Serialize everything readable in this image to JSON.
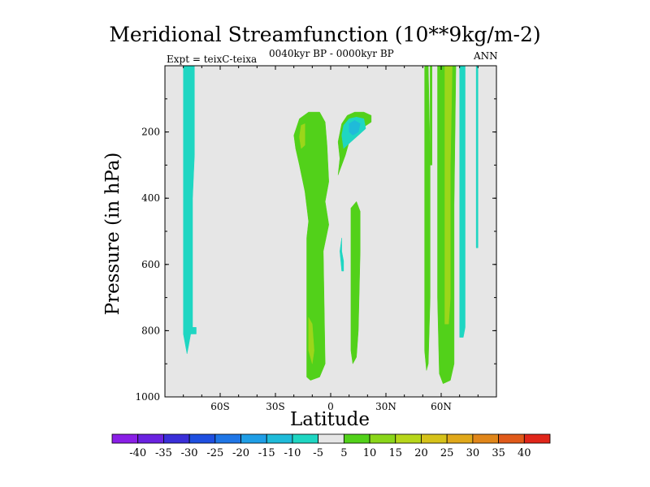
{
  "chart_data": {
    "type": "heatmap",
    "title": "Meridional Streamfunction (10**9kg/m-2)",
    "subtitle_left": "Expt = teixC-teixa",
    "subtitle_center": "0040kyr BP - 0000kyr BP",
    "subtitle_right": "ANN",
    "xlabel": "Latitude",
    "ylabel": "Pressure (in hPa)",
    "xlim": [
      -90,
      90
    ],
    "ylim": [
      1000,
      0
    ],
    "x_ticks": [
      {
        "value": -60,
        "label": "60S"
      },
      {
        "value": -30,
        "label": "30S"
      },
      {
        "value": 0,
        "label": "0"
      },
      {
        "value": 30,
        "label": "30N"
      },
      {
        "value": 60,
        "label": "60N"
      }
    ],
    "y_ticks": [
      {
        "value": 200,
        "label": "200"
      },
      {
        "value": 400,
        "label": "400"
      },
      {
        "value": 600,
        "label": "600"
      },
      {
        "value": 800,
        "label": "800"
      },
      {
        "value": 1000,
        "label": "1000"
      }
    ],
    "background_color": "#e6e6e6",
    "colorbar": {
      "levels": [
        "-40",
        "-35",
        "-30",
        "-25",
        "-20",
        "-15",
        "-10",
        "-5",
        "5",
        "10",
        "15",
        "20",
        "25",
        "30",
        "35",
        "40"
      ],
      "colors": [
        "#8a1fe6",
        "#6a22e0",
        "#3a2fd8",
        "#1f4fe0",
        "#1f76e6",
        "#1f9ee6",
        "#1fbbd9",
        "#1fd6c2",
        "#e6e6e6",
        "#52d11a",
        "#8ad61a",
        "#b7d61a",
        "#d6c21a",
        "#e0a81a",
        "#e0861a",
        "#e05a1a",
        "#e0261a"
      ]
    },
    "regions": [
      {
        "value_class": "-5",
        "color": "#1fd6c2",
        "points": [
          [
            -80,
            0
          ],
          [
            -74,
            0
          ],
          [
            -74,
            270
          ],
          [
            -75,
            400
          ],
          [
            -75,
            790
          ],
          [
            -73,
            790
          ],
          [
            -73,
            810
          ],
          [
            -76,
            810
          ],
          [
            -77,
            840
          ],
          [
            -78,
            870
          ],
          [
            -80,
            810
          ],
          [
            -80,
            400
          ]
        ]
      },
      {
        "value_class": "5",
        "color": "#52d11a",
        "points": [
          [
            -20,
            210
          ],
          [
            -17,
            160
          ],
          [
            -12,
            140
          ],
          [
            -6,
            140
          ],
          [
            -3,
            170
          ],
          [
            -2,
            240
          ],
          [
            -1,
            350
          ],
          [
            -3,
            410
          ],
          [
            -1,
            480
          ],
          [
            -4,
            560
          ],
          [
            -3,
            900
          ],
          [
            -6,
            940
          ],
          [
            -11,
            950
          ],
          [
            -13,
            940
          ],
          [
            -13,
            860
          ],
          [
            -13,
            520
          ],
          [
            -12,
            470
          ],
          [
            -14,
            380
          ],
          [
            -17,
            300
          ],
          [
            -19,
            250
          ]
        ]
      },
      {
        "value_class": "10",
        "color": "#9bd61a",
        "points": [
          [
            -16,
            180
          ],
          [
            -14,
            175
          ],
          [
            -14,
            240
          ],
          [
            -16,
            250
          ],
          [
            -17,
            215
          ]
        ]
      },
      {
        "value_class": "10",
        "color": "#9bd61a",
        "points": [
          [
            -12,
            760
          ],
          [
            -10,
            780
          ],
          [
            -9,
            860
          ],
          [
            -10,
            900
          ],
          [
            -12,
            860
          ]
        ]
      },
      {
        "value_class": "5",
        "color": "#52d11a",
        "points": [
          [
            4,
            330
          ],
          [
            8,
            270
          ],
          [
            10,
            230
          ],
          [
            14,
            210
          ],
          [
            18,
            185
          ],
          [
            22,
            170
          ],
          [
            22,
            150
          ],
          [
            18,
            140
          ],
          [
            13,
            140
          ],
          [
            9,
            150
          ],
          [
            6,
            175
          ],
          [
            4,
            230
          ],
          [
            5,
            280
          ]
        ]
      },
      {
        "value_class": "-5",
        "color": "#1fd6c2",
        "points": [
          [
            7,
            180
          ],
          [
            10,
            160
          ],
          [
            14,
            155
          ],
          [
            18,
            160
          ],
          [
            19,
            190
          ],
          [
            15,
            210
          ],
          [
            11,
            230
          ],
          [
            7,
            250
          ],
          [
            6,
            210
          ]
        ]
      },
      {
        "value_class": "-10",
        "color": "#1fbbd9",
        "points": [
          [
            10,
            175
          ],
          [
            13,
            165
          ],
          [
            16,
            175
          ],
          [
            15,
            200
          ],
          [
            12,
            210
          ],
          [
            10,
            200
          ]
        ]
      },
      {
        "value_class": "5",
        "color": "#52d11a",
        "points": [
          [
            11,
            430
          ],
          [
            14,
            410
          ],
          [
            16,
            440
          ],
          [
            16,
            560
          ],
          [
            15,
            800
          ],
          [
            14,
            880
          ],
          [
            12,
            900
          ],
          [
            11,
            860
          ],
          [
            11,
            600
          ]
        ]
      },
      {
        "value_class": "5",
        "color": "#52d11a",
        "points": [
          [
            51,
            0
          ],
          [
            53,
            0
          ],
          [
            54,
            280
          ],
          [
            54,
            700
          ],
          [
            53,
            900
          ],
          [
            52,
            920
          ],
          [
            51,
            860
          ],
          [
            51,
            400
          ]
        ]
      },
      {
        "value_class": "5",
        "color": "#52d11a",
        "points": [
          [
            58,
            0
          ],
          [
            68,
            0
          ],
          [
            67,
            420
          ],
          [
            67,
            900
          ],
          [
            65,
            950
          ],
          [
            61,
            960
          ],
          [
            59,
            930
          ],
          [
            58,
            700
          ]
        ]
      },
      {
        "value_class": "10",
        "color": "#9bd61a",
        "points": [
          [
            62,
            0
          ],
          [
            66,
            0
          ],
          [
            65,
            300
          ],
          [
            65,
            700
          ],
          [
            64,
            780
          ],
          [
            62,
            780
          ],
          [
            62,
            400
          ]
        ]
      },
      {
        "value_class": "5",
        "color": "#52d11a",
        "points": [
          [
            54,
            0
          ],
          [
            55,
            0
          ],
          [
            55,
            300
          ],
          [
            54,
            300
          ]
        ]
      },
      {
        "value_class": "-5",
        "color": "#1fd6c2",
        "points": [
          [
            70,
            0
          ],
          [
            73,
            0
          ],
          [
            73,
            790
          ],
          [
            72,
            820
          ],
          [
            70,
            820
          ],
          [
            70,
            400
          ]
        ]
      },
      {
        "value_class": "-5",
        "color": "#1fd6c2",
        "points": [
          [
            79,
            0
          ],
          [
            80,
            0
          ],
          [
            80,
            550
          ],
          [
            79,
            550
          ]
        ]
      },
      {
        "value_class": "-5",
        "color": "#1fd6c2",
        "points": [
          [
            6,
            520
          ],
          [
            6,
            560
          ],
          [
            7,
            590
          ],
          [
            7,
            620
          ],
          [
            6,
            620
          ],
          [
            5,
            560
          ]
        ]
      }
    ]
  }
}
